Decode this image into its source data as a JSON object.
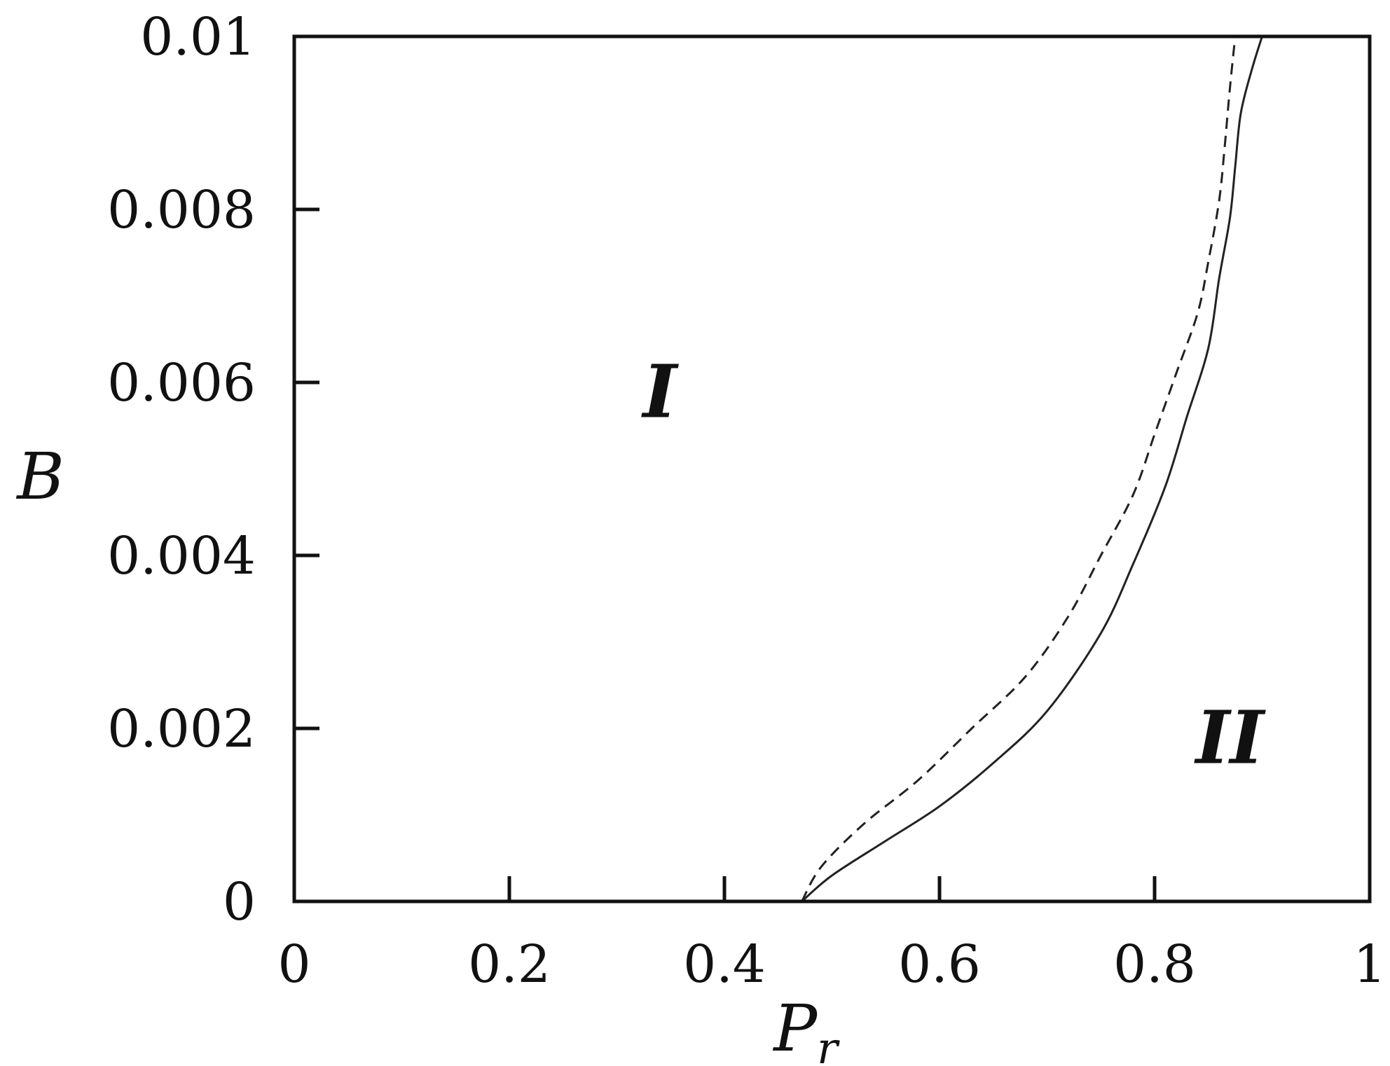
{
  "chart_data": {
    "type": "line",
    "xlabel": "P",
    "xlabel_subscript": "r",
    "ylabel": "B",
    "xlim": [
      0,
      1
    ],
    "ylim": [
      0,
      0.01
    ],
    "x_ticks": [
      "0",
      "0.2",
      "0.4",
      "0.6",
      "0.8",
      "1"
    ],
    "y_ticks": [
      "0",
      "0.002",
      "0.004",
      "0.006",
      "0.008",
      "0.01"
    ],
    "grid": false,
    "legend": "none",
    "annotations": [
      {
        "text": "I",
        "x": 0.34,
        "y": 0.0056
      },
      {
        "text": "II",
        "x": 0.87,
        "y": 0.0016
      }
    ],
    "series": [
      {
        "style": "solid",
        "color": "#222222",
        "x": [
          0.472,
          0.5,
          0.55,
          0.6,
          0.65,
          0.7,
          0.75,
          0.78,
          0.81,
          0.83,
          0.85,
          0.86,
          0.87,
          0.875,
          0.88,
          0.89,
          0.9
        ],
        "y": [
          0.0,
          0.0003,
          0.0007,
          0.0011,
          0.0016,
          0.0022,
          0.0031,
          0.0039,
          0.0048,
          0.0056,
          0.0064,
          0.0072,
          0.0079,
          0.0085,
          0.0091,
          0.0096,
          0.01
        ]
      },
      {
        "style": "dashed",
        "color": "#222222",
        "x": [
          0.472,
          0.49,
          0.53,
          0.58,
          0.63,
          0.68,
          0.72,
          0.75,
          0.78,
          0.8,
          0.82,
          0.84,
          0.85,
          0.86,
          0.865,
          0.87,
          0.875
        ],
        "y": [
          0.0,
          0.0004,
          0.0009,
          0.0014,
          0.002,
          0.0026,
          0.0033,
          0.004,
          0.0047,
          0.0054,
          0.0061,
          0.0068,
          0.0074,
          0.0081,
          0.0087,
          0.0094,
          0.01
        ]
      }
    ]
  }
}
